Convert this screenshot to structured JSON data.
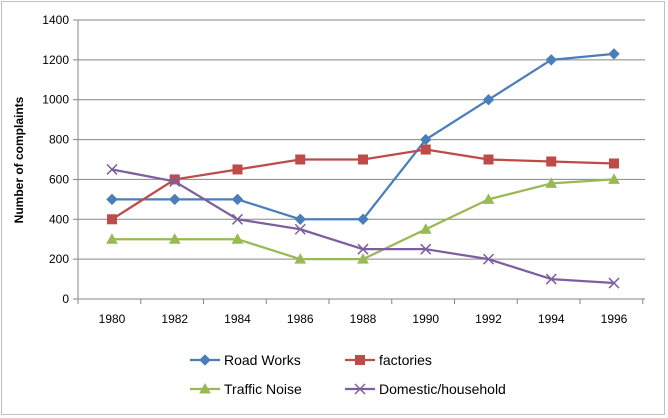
{
  "chart_data": {
    "type": "line",
    "ylabel": "Number of complaints",
    "x": [
      "1980",
      "1982",
      "1984",
      "1986",
      "1988",
      "1990",
      "1992",
      "1994",
      "1996"
    ],
    "ylim": [
      0,
      1400
    ],
    "yticks": [
      0,
      200,
      400,
      600,
      800,
      1000,
      1200,
      1400
    ],
    "grid": true,
    "legend_position": "bottom",
    "series": [
      {
        "name": "Road Works",
        "values": [
          500,
          500,
          500,
          400,
          400,
          800,
          1000,
          1200,
          1230
        ],
        "color": "#4a7ebb",
        "marker": "diamond"
      },
      {
        "name": "factories",
        "values": [
          400,
          600,
          650,
          700,
          700,
          750,
          700,
          690,
          680
        ],
        "color": "#be4b48",
        "marker": "square"
      },
      {
        "name": "Traffic Noise",
        "values": [
          300,
          300,
          300,
          200,
          200,
          350,
          500,
          580,
          600
        ],
        "color": "#98b954",
        "marker": "triangle"
      },
      {
        "name": "Domestic/household",
        "values": [
          650,
          590,
          400,
          350,
          250,
          250,
          200,
          100,
          80
        ],
        "color": "#7d5fa0",
        "marker": "x"
      }
    ]
  }
}
